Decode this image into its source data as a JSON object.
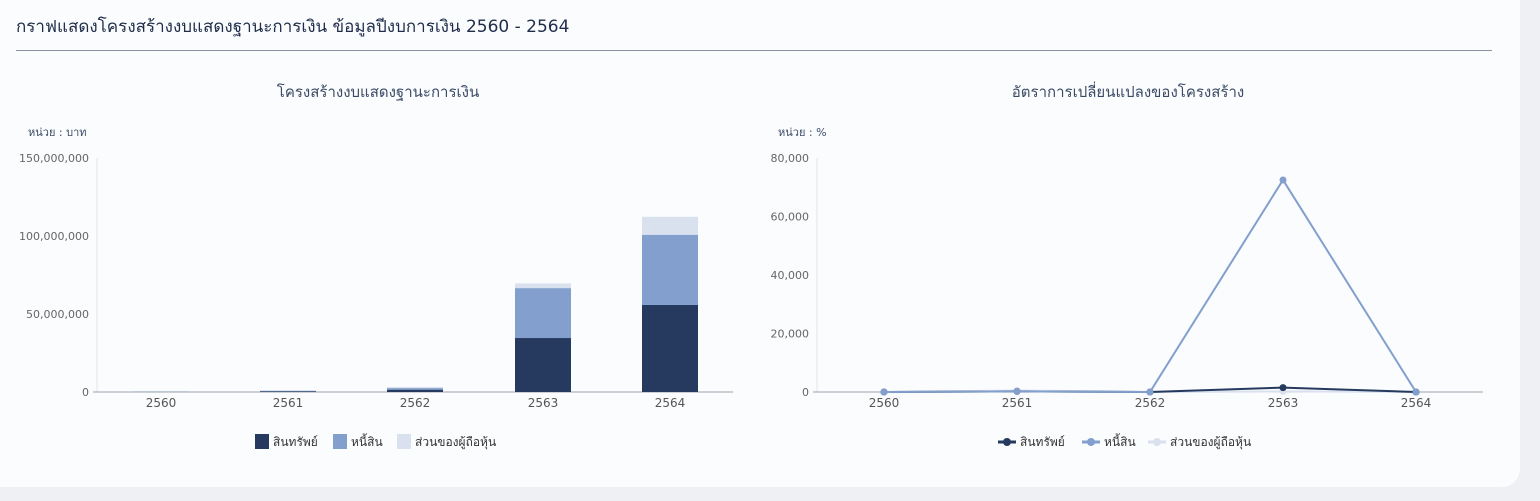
{
  "header": {
    "title": "กราฟแสดงโครงสร้างงบแสดงฐานะการเงิน ข้อมูลปีงบการเงิน 2560 - 2564"
  },
  "chart_data": [
    {
      "type": "bar",
      "stacked": true,
      "title": "โครงสร้างงบแสดงฐานะการเงิน",
      "unit_label": "หน่วย : บาท",
      "categories": [
        "2560",
        "2561",
        "2562",
        "2563",
        "2564"
      ],
      "ylim": [
        0,
        150000000
      ],
      "yticks": [
        0,
        50000000,
        100000000,
        150000000
      ],
      "ytick_labels": [
        "0",
        "50,000,000",
        "100,000,000",
        "150,000,000"
      ],
      "legend": "bottom",
      "series": [
        {
          "name": "สินทรัพย์",
          "color": "#253a5e",
          "values": [
            100000,
            500000,
            1500000,
            34600000,
            55800000
          ]
        },
        {
          "name": "หนี้สิน",
          "color": "#829fcd",
          "values": [
            50000,
            300000,
            1000000,
            32000000,
            45000000
          ]
        },
        {
          "name": "ส่วนของผู้ถือหุ้น",
          "color": "#d9e1ef",
          "values": [
            50000,
            300000,
            700000,
            3000000,
            11500000
          ]
        }
      ]
    },
    {
      "type": "line",
      "title": "อัตราการเปลี่ยนแปลงของโครงสร้าง",
      "unit_label": "หน่วย : %",
      "categories": [
        "2560",
        "2561",
        "2562",
        "2563",
        "2564"
      ],
      "ylim": [
        0,
        80000
      ],
      "yticks": [
        0,
        20000,
        40000,
        60000,
        80000
      ],
      "ytick_labels": [
        "0",
        "20,000",
        "40,000",
        "60,000",
        "80,000"
      ],
      "legend": "bottom",
      "series": [
        {
          "name": "สินทรัพย์",
          "color": "#253a5e",
          "values": [
            0,
            200,
            0,
            1500,
            0
          ]
        },
        {
          "name": "หนี้สิน",
          "color": "#829fcd",
          "values": [
            0,
            200,
            0,
            72500,
            0
          ]
        },
        {
          "name": "ส่วนของผู้ถือหุ้น",
          "color": "#d9e1ef",
          "values": [
            0,
            500,
            0,
            200,
            0
          ]
        }
      ]
    }
  ]
}
